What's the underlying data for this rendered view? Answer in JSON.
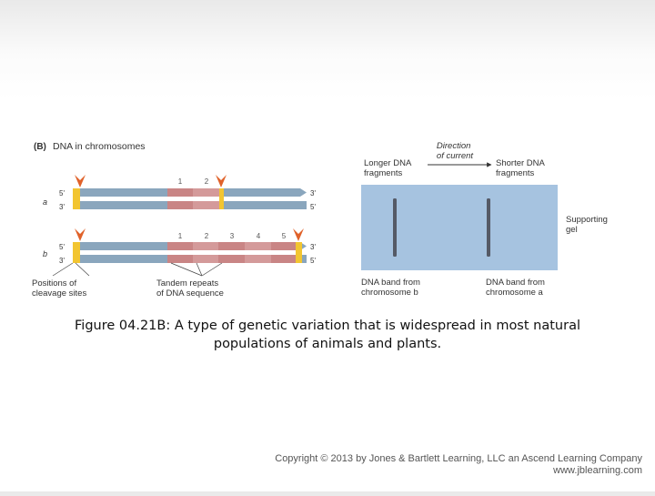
{
  "figure": {
    "panel_letter": "(B)",
    "panel_title": "DNA in chromosomes",
    "chromosome_a": {
      "label": "a",
      "top_5": "5'",
      "top_3": "3'",
      "bottom_3": "3'",
      "bottom_5": "5'",
      "repeat_numbers": [
        "1",
        "2"
      ]
    },
    "chromosome_b": {
      "label": "b",
      "top_5": "5'",
      "top_3": "3'",
      "bottom_3": "3'",
      "bottom_5": "5'",
      "repeat_numbers": [
        "1",
        "2",
        "3",
        "4",
        "5"
      ]
    },
    "cleavage_label": [
      "Positions of",
      "cleavage sites"
    ],
    "tandem_label": [
      "Tandem repeats",
      "of DNA sequence"
    ],
    "direction_label": [
      "Direction",
      "of current"
    ],
    "longer_label": [
      "Longer DNA",
      "fragments"
    ],
    "shorter_label": [
      "Shorter DNA",
      "fragments"
    ],
    "supporting_label": [
      "Supporting",
      "gel"
    ],
    "band_b_label": [
      "DNA band from",
      "chromosome b"
    ],
    "band_a_label": [
      "DNA band from",
      "chromosome a"
    ]
  },
  "colors": {
    "dna_strand": "#8aa6bd",
    "repeat_segment": "#c98585",
    "cleavage_marker": "#f2c531",
    "arrowhead": "#e0622a",
    "gel": "#a6c3e0",
    "band": "#555a66"
  },
  "caption": {
    "line1": "Figure 04.21B: A type of genetic variation that is widespread in most natural",
    "line2": "populations of animals and plants."
  },
  "copyright": {
    "line1": "Copyright © 2013 by Jones & Bartlett Learning, LLC an Ascend Learning Company",
    "line2": "www.jblearning.com"
  }
}
